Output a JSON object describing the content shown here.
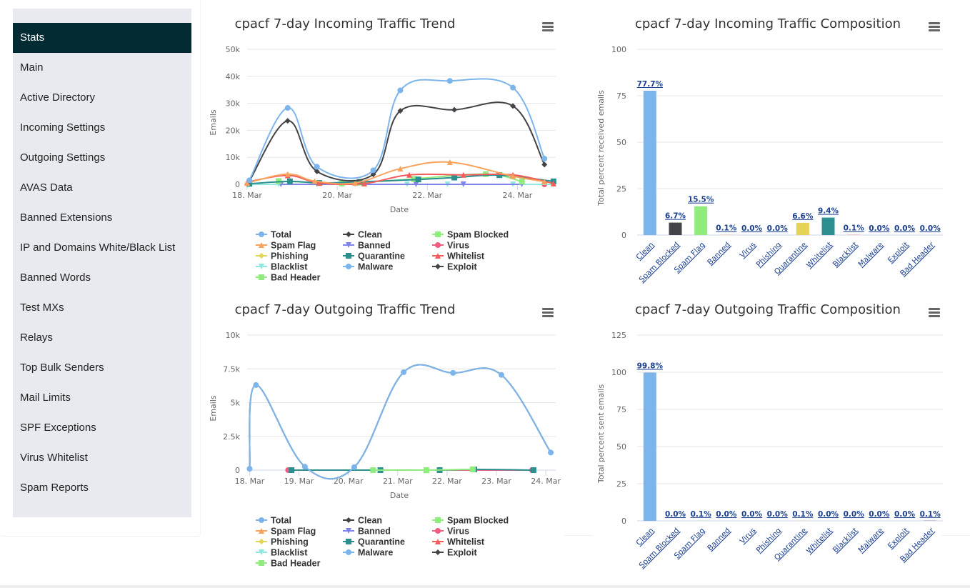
{
  "sidebar": {
    "items": [
      {
        "label": "Stats",
        "active": true
      },
      {
        "label": "Main"
      },
      {
        "label": "Active Directory"
      },
      {
        "label": "Incoming Settings"
      },
      {
        "label": "Outgoing Settings"
      },
      {
        "label": "AVAS Data"
      },
      {
        "label": "Banned Extensions"
      },
      {
        "label": "IP and Domains White/Black List"
      },
      {
        "label": "Banned Words"
      },
      {
        "label": "Test MXs"
      },
      {
        "label": "Relays"
      },
      {
        "label": "Top Bulk Senders"
      },
      {
        "label": "Mail Limits"
      },
      {
        "label": "SPF Exceptions"
      },
      {
        "label": "Virus Whitelist"
      },
      {
        "label": "Spam Reports"
      }
    ]
  },
  "colors": {
    "sidebar_bg": "#e8eaf0",
    "sidebar_active_bg": "#022b33",
    "link": "#1a3f8f",
    "grid": "#e6e6e6",
    "menu_icon": "#666666"
  },
  "legend_series": [
    {
      "name": "Total",
      "color": "#7cb5ec",
      "symbol": "circle"
    },
    {
      "name": "Clean",
      "color": "#434348",
      "symbol": "diamond"
    },
    {
      "name": "Spam Blocked",
      "color": "#90ed7d",
      "symbol": "square"
    },
    {
      "name": "Spam Flag",
      "color": "#f7a35c",
      "symbol": "triangle"
    },
    {
      "name": "Banned",
      "color": "#8085e9",
      "symbol": "triangle-down"
    },
    {
      "name": "Virus",
      "color": "#f15c80",
      "symbol": "circle"
    },
    {
      "name": "Phishing",
      "color": "#e4d354",
      "symbol": "diamond"
    },
    {
      "name": "Quarantine",
      "color": "#2b908f",
      "symbol": "square"
    },
    {
      "name": "Whitelist",
      "color": "#f45b5b",
      "symbol": "triangle"
    },
    {
      "name": "Blacklist",
      "color": "#91e8e1",
      "symbol": "triangle-down"
    },
    {
      "name": "Malware",
      "color": "#7cb5ec",
      "symbol": "circle"
    },
    {
      "name": "Exploit",
      "color": "#434348",
      "symbol": "diamond"
    },
    {
      "name": "Bad Header",
      "color": "#90ed7d",
      "symbol": "square"
    }
  ],
  "chart_data": [
    {
      "id": "incoming-trend",
      "type": "line",
      "title": "cpacf 7-day Incoming Traffic Trend",
      "xlabel": "Date",
      "ylabel": "Emails",
      "x_ticks": [
        {
          "day": 18,
          "label": "18. Mar"
        },
        {
          "day": 20,
          "label": "20. Mar"
        },
        {
          "day": 22,
          "label": "22. Mar"
        },
        {
          "day": 24,
          "label": "24. Mar"
        }
      ],
      "y_ticks": [
        {
          "v": 0,
          "label": "0"
        },
        {
          "v": 10000,
          "label": "10k"
        },
        {
          "v": 20000,
          "label": "20k"
        },
        {
          "v": 30000,
          "label": "30k"
        },
        {
          "v": 40000,
          "label": "40k"
        },
        {
          "v": 50000,
          "label": "50k"
        }
      ],
      "xlim": [
        18.0,
        24.85
      ],
      "ylim": [
        0,
        50000
      ],
      "grid": true,
      "legend": "bottom",
      "series": [
        {
          "name": "Total",
          "points": [
            [
              18.05,
              1500
            ],
            [
              18.9,
              28300
            ],
            [
              19.55,
              6500
            ],
            [
              20.8,
              5200
            ],
            [
              21.4,
              34800
            ],
            [
              22.5,
              38300
            ],
            [
              23.9,
              35800
            ],
            [
              24.6,
              9500
            ]
          ]
        },
        {
          "name": "Clean",
          "points": [
            [
              18.05,
              1200
            ],
            [
              18.9,
              23500
            ],
            [
              19.55,
              4800
            ],
            [
              20.8,
              3700
            ],
            [
              21.4,
              27200
            ],
            [
              22.6,
              27600
            ],
            [
              23.9,
              29000
            ],
            [
              24.6,
              7300
            ]
          ]
        },
        {
          "name": "Spam Flag",
          "points": [
            [
              18.0,
              500
            ],
            [
              18.9,
              3800
            ],
            [
              19.5,
              1200
            ],
            [
              20.4,
              500
            ],
            [
              21.4,
              5800
            ],
            [
              22.5,
              8200
            ],
            [
              23.9,
              3000
            ],
            [
              24.6,
              1000
            ]
          ]
        },
        {
          "name": "Whitelist",
          "points": [
            [
              18.0,
              800
            ],
            [
              18.9,
              3300
            ],
            [
              19.6,
              500
            ],
            [
              20.6,
              300
            ],
            [
              21.6,
              3500
            ],
            [
              22.8,
              3500
            ],
            [
              23.9,
              3500
            ],
            [
              24.8,
              300
            ]
          ]
        },
        {
          "name": "Quarantine",
          "points": [
            [
              18.05,
              200
            ],
            [
              18.95,
              1100
            ],
            [
              19.6,
              500
            ],
            [
              20.5,
              900
            ],
            [
              21.8,
              1800
            ],
            [
              22.6,
              2500
            ],
            [
              23.6,
              3400
            ],
            [
              24.8,
              1100
            ]
          ]
        },
        {
          "name": "Spam Blocked",
          "points": [
            [
              18.7,
              1200
            ],
            [
              20.1,
              300
            ],
            [
              20.5,
              600
            ],
            [
              21.7,
              2000
            ],
            [
              23.3,
              3800
            ],
            [
              24.1,
              1000
            ]
          ]
        },
        {
          "name": "Banned",
          "points": [
            [
              18.75,
              0
            ],
            [
              21.75,
              0
            ],
            [
              22.8,
              0
            ],
            [
              24.1,
              0
            ]
          ]
        },
        {
          "name": "Blacklist",
          "points": [
            [
              18.05,
              0
            ],
            [
              18.7,
              0
            ],
            [
              19.55,
              0
            ],
            [
              20.4,
              0
            ],
            [
              21.55,
              0
            ],
            [
              22.45,
              0
            ],
            [
              23.9,
              0
            ],
            [
              24.8,
              0
            ]
          ]
        },
        {
          "name": "Virus",
          "points": [
            [
              24.6,
              0
            ]
          ]
        }
      ]
    },
    {
      "id": "incoming-composition",
      "type": "bar",
      "title": "cpacf 7-day Incoming Traffic Composition",
      "xlabel": "",
      "ylabel": "Total percent received emails",
      "categories": [
        "Clean",
        "Spam Blocked",
        "Spam Flag",
        "Banned",
        "Virus",
        "Phishing",
        "Quarantine",
        "Whitelist",
        "Blacklist",
        "Malware",
        "Exploit",
        "Bad Header"
      ],
      "values": [
        77.7,
        6.7,
        15.5,
        0.1,
        0.0,
        0.0,
        6.6,
        9.4,
        0.1,
        0.0,
        0.0,
        0.0
      ],
      "data_labels": [
        "77.7%",
        "6.7%",
        "15.5%",
        "0.1%",
        "0.0%",
        "0.0%",
        "6.6%",
        "9.4%",
        "0.1%",
        "0.0%",
        "0.0%",
        "0.0%"
      ],
      "bar_colors": [
        "#7cb5ec",
        "#434348",
        "#90ed7d",
        "#f7a35c",
        "#8085e9",
        "#f15c80",
        "#e4d354",
        "#2b908f",
        "#f45b5b",
        "#91e8e1",
        "#7cb5ec",
        "#434348"
      ],
      "y_ticks": [
        {
          "v": 0,
          "label": "0"
        },
        {
          "v": 25,
          "label": "25"
        },
        {
          "v": 50,
          "label": "50"
        },
        {
          "v": 75,
          "label": "75"
        },
        {
          "v": 100,
          "label": "100"
        }
      ],
      "ylim": [
        0,
        100
      ],
      "grid": true
    },
    {
      "id": "outgoing-trend",
      "type": "line",
      "title": "cpacf 7-day Outgoing Traffic Trend",
      "xlabel": "Date",
      "ylabel": "Emails",
      "x_ticks": [
        {
          "day": 18,
          "label": "18. Mar"
        },
        {
          "day": 19,
          "label": "19. Mar"
        },
        {
          "day": 20,
          "label": "20. Mar"
        },
        {
          "day": 21,
          "label": "21. Mar"
        },
        {
          "day": 22,
          "label": "22. Mar"
        },
        {
          "day": 23,
          "label": "23. Mar"
        },
        {
          "day": 24,
          "label": "24. Mar"
        }
      ],
      "y_ticks": [
        {
          "v": 0,
          "label": "0"
        },
        {
          "v": 2500,
          "label": "2.5k"
        },
        {
          "v": 5000,
          "label": "5k"
        },
        {
          "v": 7500,
          "label": "7.5k"
        },
        {
          "v": 10000,
          "label": "10k"
        }
      ],
      "xlim": [
        17.95,
        24.2
      ],
      "ylim": [
        0,
        10000
      ],
      "grid": true,
      "legend": "bottom",
      "series": [
        {
          "name": "Total",
          "points": [
            [
              18.0,
              100
            ],
            [
              18.13,
              6300
            ],
            [
              19.12,
              250
            ],
            [
              20.12,
              220
            ],
            [
              21.12,
              7250
            ],
            [
              22.12,
              7200
            ],
            [
              23.1,
              7050
            ],
            [
              24.1,
              1300
            ]
          ]
        },
        {
          "name": "Clean",
          "points": [
            [
              18.0,
              100
            ],
            [
              18.13,
              6300
            ],
            [
              19.12,
              250
            ],
            [
              20.12,
              220
            ],
            [
              21.12,
              7250
            ],
            [
              22.12,
              7200
            ],
            [
              23.1,
              7050
            ],
            [
              24.1,
              1300
            ]
          ]
        },
        {
          "name": "Spam Blocked",
          "points": [
            [
              20.5,
              0
            ],
            [
              21.58,
              0
            ],
            [
              22.52,
              60
            ]
          ]
        },
        {
          "name": "Quarantine",
          "points": [
            [
              18.85,
              0
            ],
            [
              20.65,
              0
            ],
            [
              21.85,
              0
            ],
            [
              22.55,
              50
            ],
            [
              23.75,
              0
            ]
          ]
        },
        {
          "name": "Virus",
          "points": [
            [
              18.78,
              0
            ],
            [
              23.72,
              0
            ]
          ]
        }
      ]
    },
    {
      "id": "outgoing-composition",
      "type": "bar",
      "title": "cpacf 7-day Outgoing Traffic Composition",
      "xlabel": "",
      "ylabel": "Total percent sent emails",
      "categories": [
        "Clean",
        "Spam Blocked",
        "Spam Flag",
        "Banned",
        "Virus",
        "Phishing",
        "Quarantine",
        "Whitelist",
        "Blacklist",
        "Malware",
        "Exploit",
        "Bad Header"
      ],
      "values": [
        99.8,
        0.0,
        0.1,
        0.0,
        0.0,
        0.0,
        0.1,
        0.0,
        0.0,
        0.0,
        0.0,
        0.1
      ],
      "data_labels": [
        "99.8%",
        "0.0%",
        "0.1%",
        "0.0%",
        "0.0%",
        "0.0%",
        "0.1%",
        "0.0%",
        "0.0%",
        "0.0%",
        "0.0%",
        "0.1%"
      ],
      "bar_colors": [
        "#7cb5ec",
        "#434348",
        "#90ed7d",
        "#f7a35c",
        "#8085e9",
        "#f15c80",
        "#e4d354",
        "#2b908f",
        "#f45b5b",
        "#91e8e1",
        "#7cb5ec",
        "#434348"
      ],
      "y_ticks": [
        {
          "v": 0,
          "label": "0"
        },
        {
          "v": 25,
          "label": "25"
        },
        {
          "v": 50,
          "label": "50"
        },
        {
          "v": 75,
          "label": "75"
        },
        {
          "v": 100,
          "label": "100"
        },
        {
          "v": 125,
          "label": "125"
        }
      ],
      "ylim": [
        0,
        125
      ],
      "grid": true
    }
  ]
}
